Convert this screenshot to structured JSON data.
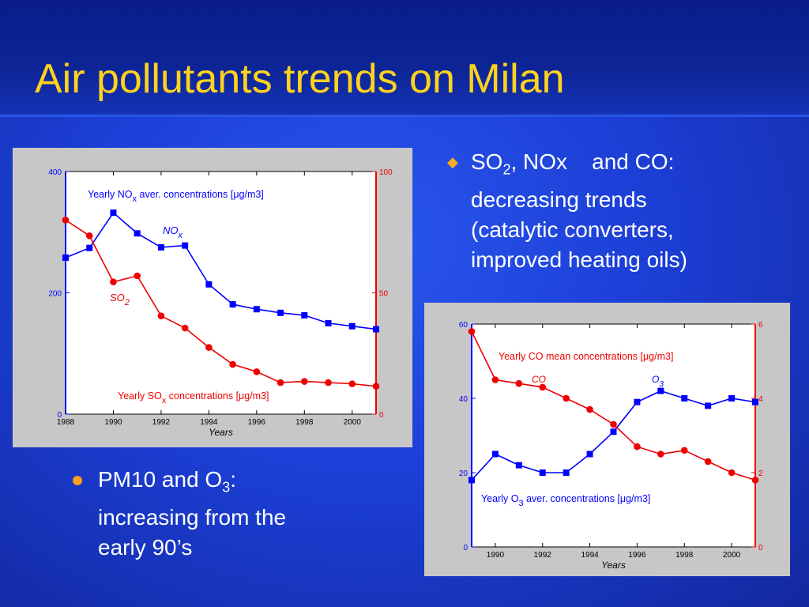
{
  "slide": {
    "title": "Air pollutants trends on Milan",
    "bullet1": {
      "mark": "◆",
      "line1_pre": "SO",
      "line1_sub": "2",
      "line1_post": ", NOx    and CO:",
      "line2": "decreasing trends",
      "line3": "(catalytic converters,",
      "line4": "improved heating oils)"
    },
    "bullet2": {
      "line1_pre": "PM10 and O",
      "line1_sub": "3",
      "line1_post": ":",
      "line2": "increasing from the",
      "line3": "early 90’s"
    }
  },
  "colors": {
    "blue_series": "#0000ff",
    "red_series": "#ee0000",
    "title_text": "#ffd21e"
  },
  "chart_data": [
    {
      "type": "line",
      "x": [
        1988,
        1989,
        1990,
        1991,
        1992,
        1993,
        1994,
        1995,
        1996,
        1997,
        1998,
        1999,
        2000,
        2001
      ],
      "xlabel": "Years",
      "x_ticks": [
        "1988",
        "1990",
        "1992",
        "1994",
        "1996",
        "1998",
        "2000"
      ],
      "xlim": [
        1988,
        2001
      ],
      "left_axis": {
        "ylim": [
          0,
          400
        ],
        "ticks": [
          "0",
          "200",
          "400"
        ]
      },
      "right_axis": {
        "ylim": [
          0,
          100
        ],
        "ticks": [
          "0",
          "50",
          "100"
        ]
      },
      "series": [
        {
          "name": "NOx",
          "label_main": "NO",
          "label_sub": "x",
          "axis": "left",
          "marker": "square",
          "color": "#0000ff",
          "values": [
            258,
            274,
            332,
            298,
            275,
            278,
            214,
            181,
            173,
            167,
            163,
            150,
            145,
            140
          ]
        },
        {
          "name": "SO2",
          "label_main": "SO",
          "label_sub": "2",
          "axis": "right",
          "marker": "circle",
          "color": "#ee0000",
          "values": [
            80,
            73.5,
            54.5,
            57,
            40.5,
            35.5,
            27.5,
            20.5,
            17.5,
            13,
            13.5,
            13,
            12.5,
            11.5
          ]
        }
      ],
      "annotations": {
        "top_pre": "Yearly NO",
        "top_sub": "x",
        "top_post": " aver. concentrations [",
        "top_mu": "μ",
        "top_end": "g/m3]",
        "bottom_pre": "Yearly SO",
        "bottom_sub": "x",
        "bottom_post": "  concentrations  [",
        "bottom_mu": "μ",
        "bottom_end": "g/m3]"
      }
    },
    {
      "type": "line",
      "x": [
        1989,
        1990,
        1991,
        1992,
        1993,
        1994,
        1995,
        1996,
        1997,
        1998,
        1999,
        2000,
        2001
      ],
      "xlabel": "Years",
      "x_ticks": [
        "1990",
        "1992",
        "1994",
        "1996",
        "1998",
        "2000"
      ],
      "xlim": [
        1989,
        2001
      ],
      "left_axis": {
        "ylim": [
          0,
          60
        ],
        "ticks": [
          "0",
          "20",
          "40",
          "60"
        ]
      },
      "right_axis": {
        "ylim": [
          0,
          6
        ],
        "ticks": [
          "0",
          "2",
          "4",
          "6"
        ]
      },
      "series": [
        {
          "name": "O3",
          "label_main": "O",
          "label_sub": "3",
          "axis": "left",
          "marker": "square",
          "color": "#0000ff",
          "values": [
            18,
            25,
            22,
            20,
            20,
            25,
            31,
            39,
            42,
            40,
            38,
            40,
            39
          ]
        },
        {
          "name": "CO",
          "label_main": "CO",
          "label_sub": "",
          "axis": "right",
          "marker": "circle",
          "color": "#ee0000",
          "values": [
            5.8,
            4.5,
            4.4,
            4.3,
            4.0,
            3.7,
            3.3,
            2.7,
            2.5,
            2.6,
            2.3,
            2.0,
            1.8
          ]
        }
      ],
      "annotations": {
        "top_pre": "Yearly CO mean concentrations [",
        "top_mu": "μ",
        "top_end": "g/m3]",
        "bottom_pre": "Yearly O",
        "bottom_sub": "3",
        "bottom_post": " aver. concentrations [",
        "bottom_mu": "μ",
        "bottom_end": "g/m3]"
      }
    }
  ]
}
